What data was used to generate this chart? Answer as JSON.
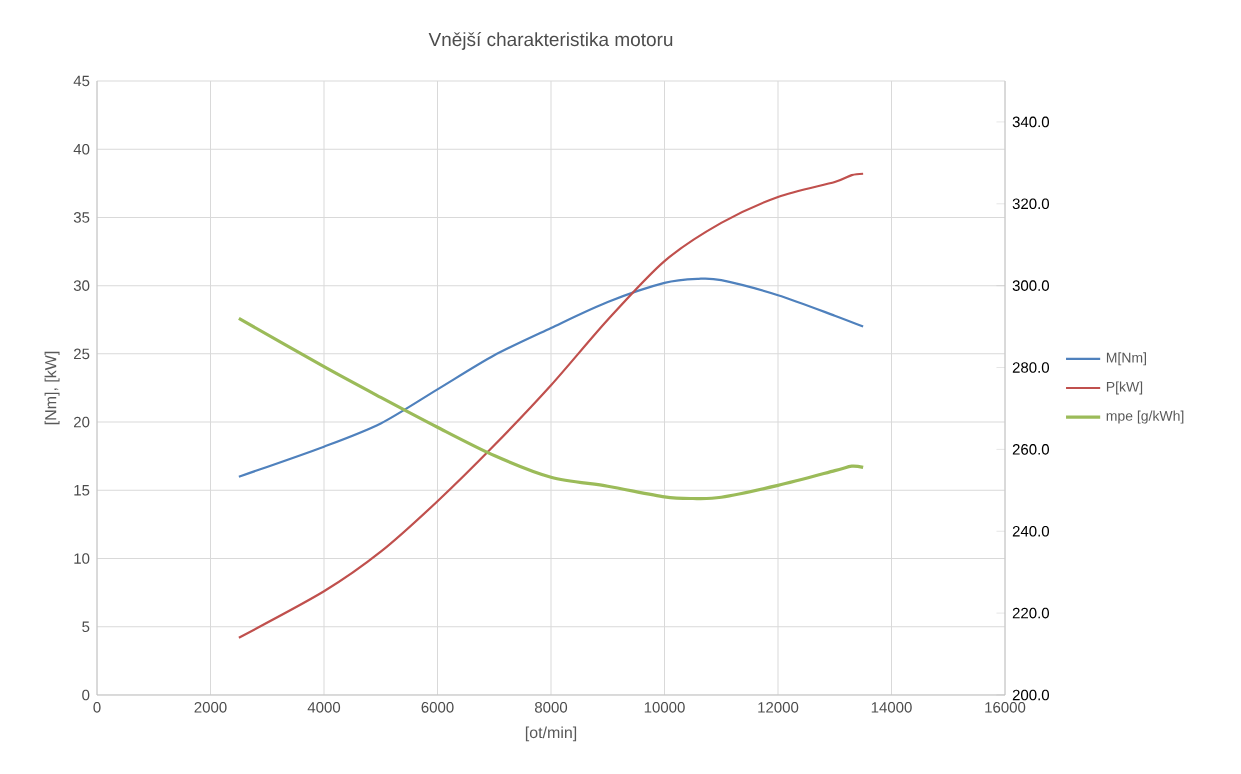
{
  "chart_data": {
    "type": "line",
    "title": "Vnější charakteristika motoru",
    "xlabel": "[ot/min]",
    "ylabel": "[Nm], [kW]",
    "xlim": [
      0,
      16000
    ],
    "xticks": [
      0,
      2000,
      4000,
      6000,
      8000,
      10000,
      12000,
      14000,
      16000
    ],
    "ylim": [
      0,
      45
    ],
    "yticks": [
      0,
      5,
      10,
      15,
      20,
      25,
      30,
      35,
      40,
      45
    ],
    "y2lim": [
      200,
      350
    ],
    "y2ticks": [
      {
        "value": 200,
        "label": "200.0"
      },
      {
        "value": 220,
        "label": "220.0"
      },
      {
        "value": 240,
        "label": "240.0"
      },
      {
        "value": 260,
        "label": "260.0"
      },
      {
        "value": 280,
        "label": "280.0"
      },
      {
        "value": 300,
        "label": "300.0"
      },
      {
        "value": 320,
        "label": "320.0"
      },
      {
        "value": 340,
        "label": "340.0"
      }
    ],
    "grid": true,
    "legend": "right",
    "marker": "none",
    "line_style": "solid",
    "series": [
      {
        "name": "M[Nm]",
        "color": "#4f81bd",
        "x": [
          2500,
          4000,
          5000,
          6000,
          7000,
          8000,
          9000,
          10000,
          10600,
          11000,
          12000,
          13000,
          13500
        ],
        "values": [
          16.0,
          18.2,
          19.9,
          22.4,
          24.9,
          26.9,
          28.8,
          30.2,
          30.5,
          30.4,
          29.3,
          27.8,
          27.0
        ]
      },
      {
        "name": "P[kW]",
        "color": "#c0504d",
        "x": [
          2500,
          4000,
          5000,
          6000,
          7000,
          8000,
          9000,
          10000,
          11000,
          12000,
          13000,
          13300,
          13500
        ],
        "values": [
          4.2,
          7.6,
          10.5,
          14.2,
          18.3,
          22.7,
          27.5,
          31.8,
          34.6,
          36.5,
          37.6,
          38.1,
          38.2
        ]
      },
      {
        "name": "mpe [g/kWh]",
        "color": "#9bbb59",
        "axis": "y2",
        "x": [
          2500,
          4000,
          5000,
          6000,
          7000,
          8000,
          9000,
          10000,
          10500,
          11000,
          12000,
          13000,
          13300,
          13500
        ],
        "values": [
          292,
          280.2,
          272.7,
          265.4,
          258.5,
          253.2,
          251,
          248.4,
          248.0,
          248.3,
          251.2,
          254.8,
          255.9,
          255.6
        ]
      }
    ]
  }
}
